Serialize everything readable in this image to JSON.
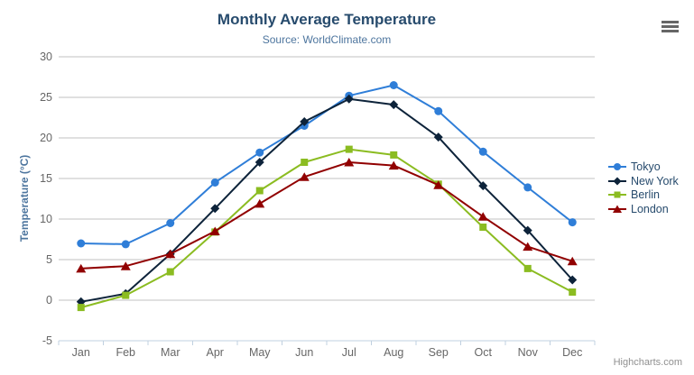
{
  "header": {
    "title": "Monthly Average Temperature",
    "subtitle": "Source: WorldClimate.com"
  },
  "chart_data": {
    "type": "line",
    "categories": [
      "Jan",
      "Feb",
      "Mar",
      "Apr",
      "May",
      "Jun",
      "Jul",
      "Aug",
      "Sep",
      "Oct",
      "Nov",
      "Dec"
    ],
    "series": [
      {
        "name": "Tokyo",
        "color": "#2f7ed8",
        "marker": "circle",
        "values": [
          7.0,
          6.9,
          9.5,
          14.5,
          18.2,
          21.5,
          25.2,
          26.5,
          23.3,
          18.3,
          13.9,
          9.6
        ]
      },
      {
        "name": "New York",
        "color": "#0d233a",
        "marker": "diamond",
        "values": [
          -0.2,
          0.8,
          5.7,
          11.3,
          17.0,
          22.0,
          24.8,
          24.1,
          20.1,
          14.1,
          8.6,
          2.5
        ]
      },
      {
        "name": "Berlin",
        "color": "#8bbc21",
        "marker": "square",
        "values": [
          -0.9,
          0.6,
          3.5,
          8.4,
          13.5,
          17.0,
          18.6,
          17.9,
          14.3,
          9.0,
          3.9,
          1.0
        ]
      },
      {
        "name": "London",
        "color": "#910000",
        "marker": "triangle",
        "values": [
          3.9,
          4.2,
          5.7,
          8.5,
          11.9,
          15.2,
          17.0,
          16.6,
          14.2,
          10.3,
          6.6,
          4.8
        ]
      }
    ],
    "title": "Monthly Average Temperature",
    "subtitle": "Source: WorldClimate.com",
    "xlabel": "",
    "ylabel": "Temperature (°C)",
    "ylim": [
      -5,
      30
    ],
    "yticks": [
      -5,
      0,
      5,
      10,
      15,
      20,
      25,
      30
    ],
    "grid": true,
    "legend_position": "right"
  },
  "colors": {
    "title_text": "#274b6d",
    "subtitle_text": "#4d759e",
    "axis_label": "#666666",
    "gridline": "#c0c0c0",
    "axis_line": "#c0d0e0",
    "legend_text": "#274b6d",
    "menu_icon": "#666666",
    "credit_text": "#909090"
  },
  "export_menu": {
    "icon": "hamburger-icon"
  },
  "credit": {
    "label": "Highcharts.com"
  }
}
